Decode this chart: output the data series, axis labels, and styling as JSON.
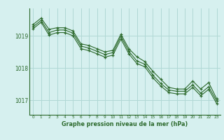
{
  "x": [
    0,
    1,
    2,
    3,
    4,
    5,
    6,
    7,
    8,
    9,
    10,
    11,
    12,
    13,
    14,
    15,
    16,
    17,
    18,
    19,
    20,
    21,
    22,
    23
  ],
  "line1": [
    1019.35,
    1019.55,
    1019.2,
    1019.25,
    1019.25,
    1019.15,
    1018.75,
    1018.7,
    1018.6,
    1018.5,
    1018.55,
    1019.05,
    1018.6,
    1018.35,
    1018.2,
    1017.9,
    1017.65,
    1017.4,
    1017.35,
    1017.35,
    1017.6,
    1017.35,
    1017.55,
    1017.05
  ],
  "line2": [
    1019.28,
    1019.48,
    1019.1,
    1019.18,
    1019.18,
    1019.08,
    1018.68,
    1018.62,
    1018.52,
    1018.42,
    1018.48,
    1018.98,
    1018.52,
    1018.22,
    1018.12,
    1017.78,
    1017.52,
    1017.32,
    1017.28,
    1017.28,
    1017.48,
    1017.22,
    1017.42,
    1016.98
  ],
  "line3": [
    1019.22,
    1019.42,
    1019.02,
    1019.1,
    1019.1,
    1019.0,
    1018.6,
    1018.54,
    1018.44,
    1018.34,
    1018.4,
    1018.9,
    1018.44,
    1018.14,
    1018.04,
    1017.7,
    1017.44,
    1017.24,
    1017.2,
    1017.2,
    1017.4,
    1017.14,
    1017.34,
    1016.9
  ],
  "bg_color": "#d6f0ef",
  "grid_color": "#b0d8d5",
  "line_color": "#2d6a2d",
  "ylabel_ticks": [
    1017,
    1018,
    1019
  ],
  "xlabel_ticks": [
    0,
    1,
    2,
    3,
    4,
    5,
    6,
    7,
    8,
    9,
    10,
    11,
    12,
    13,
    14,
    15,
    16,
    17,
    18,
    19,
    20,
    21,
    22,
    23
  ],
  "xlabel": "Graphe pression niveau de la mer (hPa)",
  "ylim": [
    1016.55,
    1019.85
  ],
  "xlim": [
    -0.5,
    23.5
  ]
}
